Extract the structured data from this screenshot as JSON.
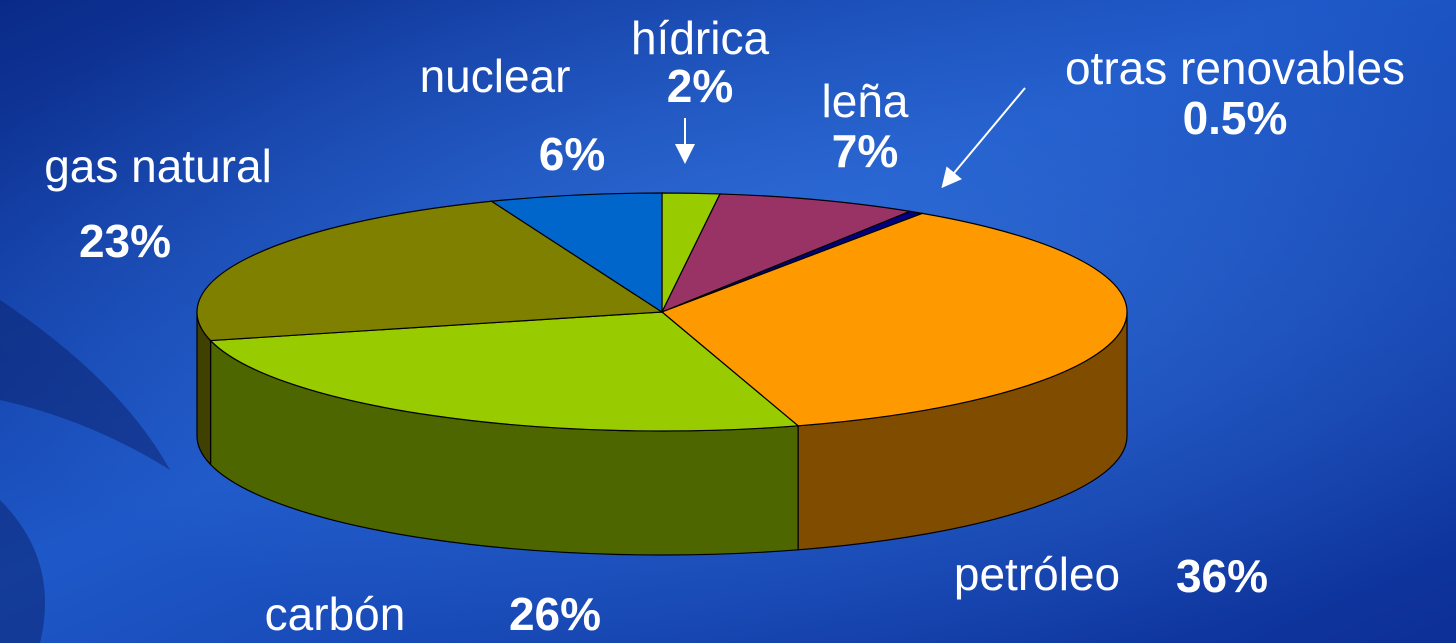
{
  "chart_data": {
    "type": "pie3d",
    "categories": [
      "hídrica",
      "leña",
      "otras renovables",
      "petróleo",
      "carbón",
      "gas natural",
      "nuclear"
    ],
    "values": [
      2,
      7,
      0.5,
      36,
      26,
      23,
      6
    ],
    "value_labels": [
      "2%",
      "7%",
      "0.5%",
      "36%",
      "26%",
      "23%",
      "6%"
    ],
    "colors": [
      "#99cc00",
      "#993366",
      "#000080",
      "#ff9900",
      "#99cc00",
      "#808000",
      "#0066cc"
    ]
  }
}
